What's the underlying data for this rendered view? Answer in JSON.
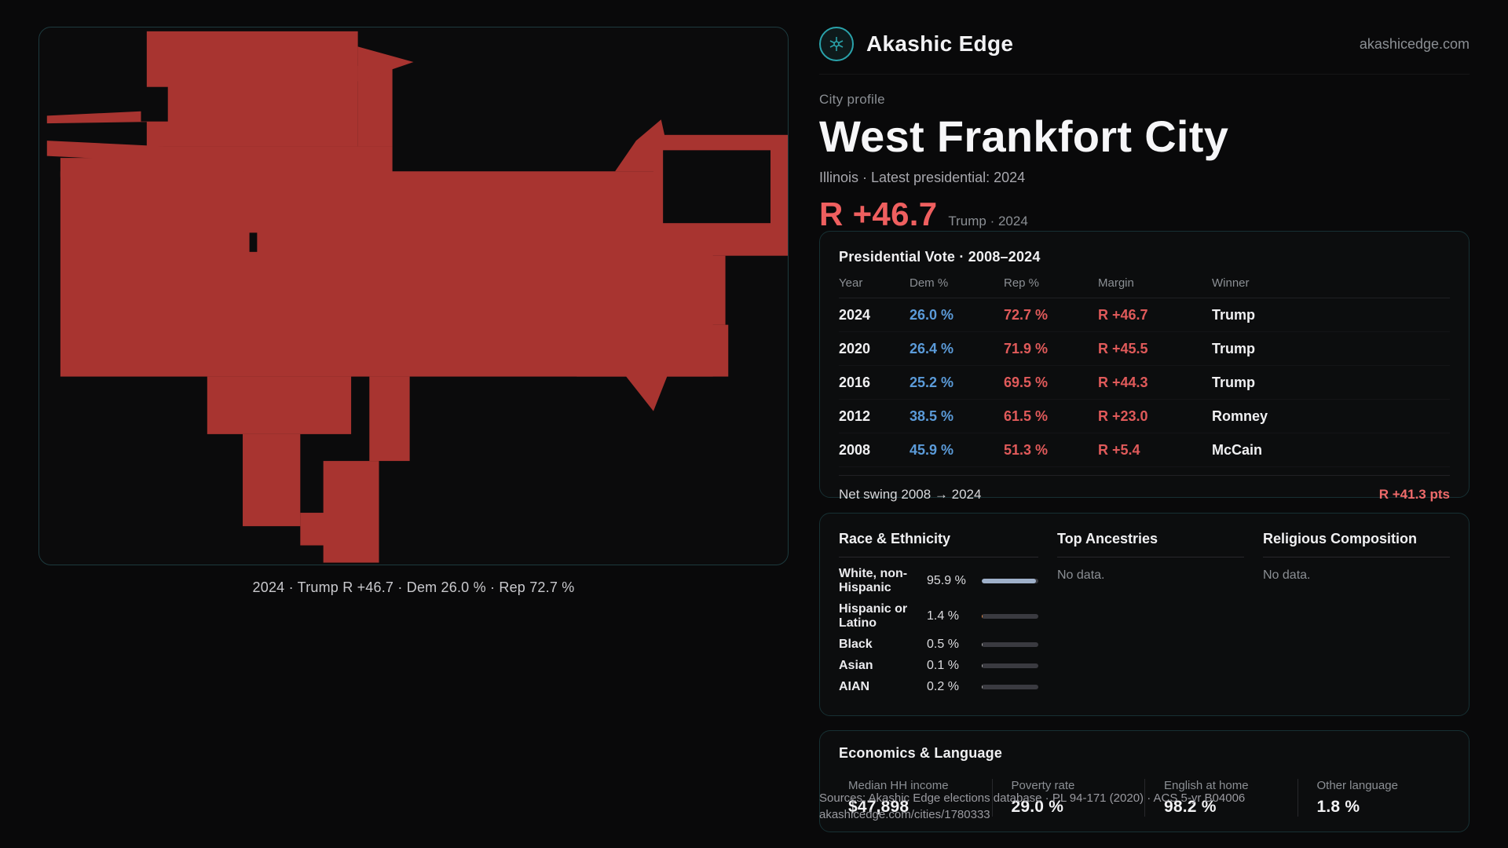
{
  "brand": {
    "name": "Akashic Edge",
    "domain": "akashicedge.com"
  },
  "page": {
    "eyebrow": "City profile",
    "title": "West Frankfort City",
    "subtitle": "Illinois · Latest presidential: 2024",
    "headline_margin": "R +46.7",
    "headline_context": "Trump · 2024"
  },
  "map": {
    "caption": "2024 · Trump R +46.7 · Dem 26.0 % · Rep 72.7 %",
    "fill_color": "#a83430"
  },
  "presidential": {
    "title": "Presidential Vote · 2008–2024",
    "columns": [
      "Year",
      "Dem %",
      "Rep %",
      "Margin",
      "Winner"
    ],
    "rows": [
      {
        "year": "2024",
        "dem": "26.0 %",
        "rep": "72.7 %",
        "margin": "R +46.7",
        "winner": "Trump"
      },
      {
        "year": "2020",
        "dem": "26.4 %",
        "rep": "71.9 %",
        "margin": "R +45.5",
        "winner": "Trump"
      },
      {
        "year": "2016",
        "dem": "25.2 %",
        "rep": "69.5 %",
        "margin": "R +44.3",
        "winner": "Trump"
      },
      {
        "year": "2012",
        "dem": "38.5 %",
        "rep": "61.5 %",
        "margin": "R +23.0",
        "winner": "Romney"
      },
      {
        "year": "2008",
        "dem": "45.9 %",
        "rep": "51.3 %",
        "margin": "R +5.4",
        "winner": "McCain"
      }
    ],
    "net_swing_label": "Net swing 2008 → 2024",
    "net_swing_value": "R +41.3 pts"
  },
  "demographics": {
    "race": {
      "title": "Race & Ethnicity",
      "rows": [
        {
          "label": "White, non-Hispanic",
          "value": "95.9 %",
          "pct": 95.9,
          "color": "#9fb0c9"
        },
        {
          "label": "Hispanic or Latino",
          "value": "1.4 %",
          "pct": 1.4,
          "color": "#e0833f"
        },
        {
          "label": "Black",
          "value": "0.5 %",
          "pct": 0.5,
          "color": "#b0b0b0"
        },
        {
          "label": "Asian",
          "value": "0.1 %",
          "pct": 0.1,
          "color": "#b0b0b0"
        },
        {
          "label": "AIAN",
          "value": "0.2 %",
          "pct": 0.2,
          "color": "#b0b0b0"
        }
      ]
    },
    "ancestries": {
      "title": "Top Ancestries",
      "empty": "No data."
    },
    "religion": {
      "title": "Religious Composition",
      "empty": "No data."
    }
  },
  "economics": {
    "title": "Economics & Language",
    "stats": [
      {
        "label": "Median HH income",
        "value": "$47,898"
      },
      {
        "label": "Poverty rate",
        "value": "29.0 %"
      },
      {
        "label": "English at home",
        "value": "98.2 %"
      },
      {
        "label": "Other language",
        "value": "1.8 %"
      }
    ]
  },
  "footer": {
    "sources": "Sources: Akashic Edge elections database · PL 94-171 (2020) · ACS 5-yr B04006",
    "permalink": "akashicedge.com/cities/1780333"
  }
}
